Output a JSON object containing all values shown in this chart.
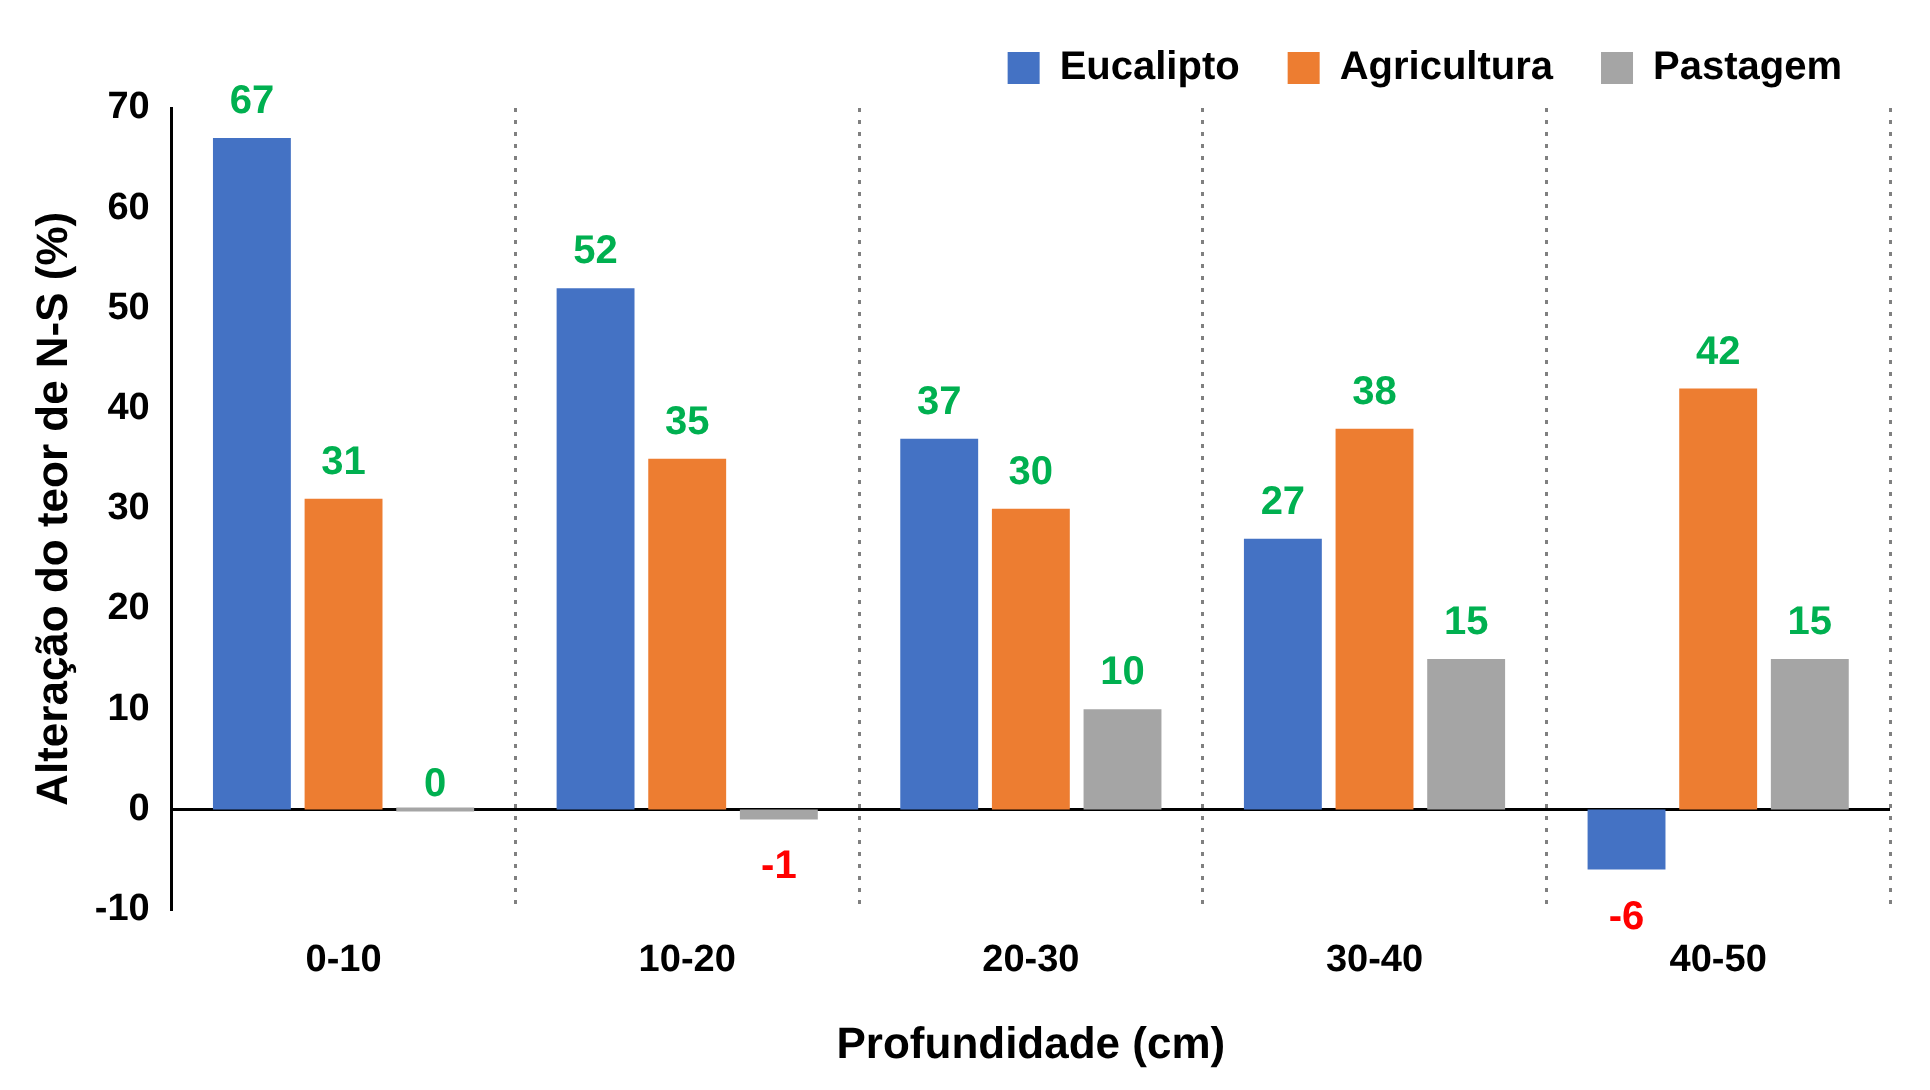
{
  "chart_data": {
    "type": "bar",
    "xlabel": "Profundidade (cm)",
    "ylabel": "Alteração do teor de N-S (%)",
    "categories": [
      "0-10",
      "10-20",
      "20-30",
      "30-40",
      "40-50"
    ],
    "series": [
      {
        "name": "Eucalipto",
        "color": "#4472c4",
        "values": [
          67,
          52,
          37,
          27,
          -6
        ]
      },
      {
        "name": "Agricultura",
        "color": "#ed7d31",
        "values": [
          31,
          35,
          30,
          38,
          42
        ]
      },
      {
        "name": "Pastagem",
        "color": "#a5a5a5",
        "values": [
          0,
          -1,
          10,
          15,
          15
        ]
      }
    ],
    "ylim": [
      -10,
      70
    ],
    "yticks": [
      -10,
      0,
      10,
      20,
      30,
      40,
      50,
      60,
      70
    ],
    "grid": "x",
    "legend": "top right",
    "data_labels": true
  }
}
